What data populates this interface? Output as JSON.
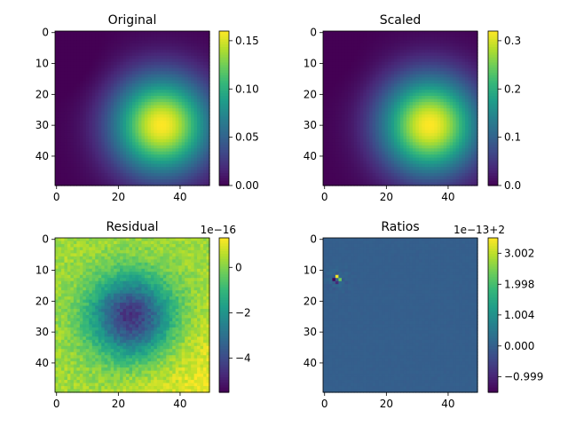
{
  "chart_data": [
    {
      "type": "heatmap",
      "title": "Original",
      "colormap": "viridis",
      "grid": false,
      "x_ticks": [
        "0",
        "20",
        "40"
      ],
      "y_ticks": [
        "0",
        "10",
        "20",
        "30",
        "40"
      ],
      "xlim": [
        0,
        49
      ],
      "ylim": [
        49,
        0
      ],
      "colorbar": {
        "range": [
          0.0,
          0.16
        ],
        "ticks": [
          "0.00",
          "0.05",
          "0.10",
          "0.15"
        ],
        "tick_values": [
          0,
          0.05,
          0.1,
          0.15
        ],
        "offset_text": ""
      },
      "field": {
        "kind": "gaussian",
        "center": [
          34,
          30
        ],
        "sigma": 11,
        "peak": 0.16
      }
    },
    {
      "type": "heatmap",
      "title": "Scaled",
      "colormap": "viridis",
      "grid": false,
      "x_ticks": [
        "0",
        "20",
        "40"
      ],
      "y_ticks": [
        "0",
        "10",
        "20",
        "30",
        "40"
      ],
      "xlim": [
        0,
        49
      ],
      "ylim": [
        49,
        0
      ],
      "colorbar": {
        "range": [
          0.0,
          0.32
        ],
        "ticks": [
          "0.0",
          "0.1",
          "0.2",
          "0.3"
        ],
        "tick_values": [
          0,
          0.1,
          0.2,
          0.3
        ],
        "offset_text": ""
      },
      "field": {
        "kind": "gaussian",
        "center": [
          34,
          30
        ],
        "sigma": 11,
        "peak": 0.32
      }
    },
    {
      "type": "heatmap",
      "title": "Residual",
      "colormap": "viridis",
      "grid": false,
      "x_ticks": [
        "0",
        "20",
        "40"
      ],
      "y_ticks": [
        "0",
        "10",
        "20",
        "30",
        "40"
      ],
      "xlim": [
        0,
        49
      ],
      "ylim": [
        49,
        0
      ],
      "colorbar": {
        "range": [
          -5.5,
          1.3
        ],
        "ticks": [
          "0",
          "−2",
          "−4"
        ],
        "tick_values": [
          0,
          -2,
          -4
        ],
        "offset_text": "1e−16"
      },
      "field": {
        "kind": "residual",
        "center": [
          24,
          25
        ],
        "sigma": 9,
        "min": -5.5,
        "max": 1.3
      }
    },
    {
      "type": "heatmap",
      "title": "Ratios",
      "colormap": "viridis",
      "grid": false,
      "x_ticks": [
        "0",
        "20",
        "40"
      ],
      "y_ticks": [
        "0",
        "10",
        "20",
        "30",
        "40"
      ],
      "xlim": [
        0,
        49
      ],
      "ylim": [
        49,
        0
      ],
      "colorbar": {
        "range": [
          -1.5,
          3.5
        ],
        "ticks": [
          "3.002",
          "1.998",
          "1.004",
          "0.000",
          "−0.999"
        ],
        "tick_values": [
          3.002,
          1.998,
          1.004,
          0.0,
          -0.999
        ],
        "offset_text": "1e−13+2"
      },
      "field": {
        "kind": "ratios",
        "center": [
          4,
          13
        ],
        "base": 0.0
      }
    }
  ]
}
